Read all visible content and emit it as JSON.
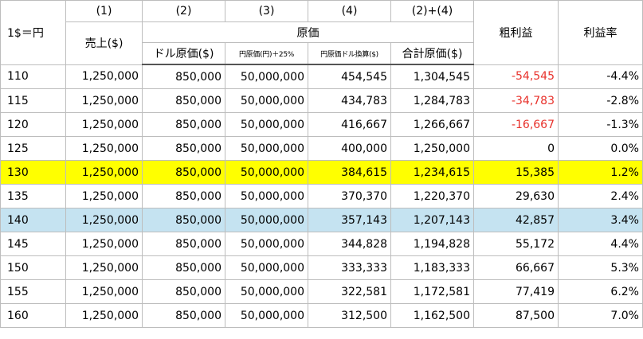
{
  "headers": {
    "rate": "1$＝円",
    "sales_num": "(1)",
    "sales": "売上($)",
    "cost_usd_num": "(2)",
    "cost_jpy_num": "(3)",
    "cost_jpy_usd_num": "(4)",
    "total_cost_num": "(2)+(4)",
    "cost_group": "原価",
    "cost_usd": "ドル原価($)",
    "cost_jpy": "円原価(円)＋25%",
    "cost_jpy_usd": "円原価ドル換算($)",
    "total_cost": "合計原価($)",
    "gross_profit": "粗利益",
    "margin": "利益率"
  },
  "rows": [
    {
      "rate": "110",
      "sales": "1,250,000",
      "cost_usd": "850,000",
      "cost_jpy": "50,000,000",
      "cost_jpy_usd": "454,545",
      "total_cost": "1,304,545",
      "gross_profit": "-54,545",
      "margin": "-4.4%"
    },
    {
      "rate": "115",
      "sales": "1,250,000",
      "cost_usd": "850,000",
      "cost_jpy": "50,000,000",
      "cost_jpy_usd": "434,783",
      "total_cost": "1,284,783",
      "gross_profit": "-34,783",
      "margin": "-2.8%"
    },
    {
      "rate": "120",
      "sales": "1,250,000",
      "cost_usd": "850,000",
      "cost_jpy": "50,000,000",
      "cost_jpy_usd": "416,667",
      "total_cost": "1,266,667",
      "gross_profit": "-16,667",
      "margin": "-1.3%"
    },
    {
      "rate": "125",
      "sales": "1,250,000",
      "cost_usd": "850,000",
      "cost_jpy": "50,000,000",
      "cost_jpy_usd": "400,000",
      "total_cost": "1,250,000",
      "gross_profit": "0",
      "margin": "0.0%"
    },
    {
      "rate": "130",
      "sales": "1,250,000",
      "cost_usd": "850,000",
      "cost_jpy": "50,000,000",
      "cost_jpy_usd": "384,615",
      "total_cost": "1,234,615",
      "gross_profit": "15,385",
      "margin": "1.2%"
    },
    {
      "rate": "135",
      "sales": "1,250,000",
      "cost_usd": "850,000",
      "cost_jpy": "50,000,000",
      "cost_jpy_usd": "370,370",
      "total_cost": "1,220,370",
      "gross_profit": "29,630",
      "margin": "2.4%"
    },
    {
      "rate": "140",
      "sales": "1,250,000",
      "cost_usd": "850,000",
      "cost_jpy": "50,000,000",
      "cost_jpy_usd": "357,143",
      "total_cost": "1,207,143",
      "gross_profit": "42,857",
      "margin": "3.4%"
    },
    {
      "rate": "145",
      "sales": "1,250,000",
      "cost_usd": "850,000",
      "cost_jpy": "50,000,000",
      "cost_jpy_usd": "344,828",
      "total_cost": "1,194,828",
      "gross_profit": "55,172",
      "margin": "4.4%"
    },
    {
      "rate": "150",
      "sales": "1,250,000",
      "cost_usd": "850,000",
      "cost_jpy": "50,000,000",
      "cost_jpy_usd": "333,333",
      "total_cost": "1,183,333",
      "gross_profit": "66,667",
      "margin": "5.3%"
    },
    {
      "rate": "155",
      "sales": "1,250,000",
      "cost_usd": "850,000",
      "cost_jpy": "50,000,000",
      "cost_jpy_usd": "322,581",
      "total_cost": "1,172,581",
      "gross_profit": "77,419",
      "margin": "6.2%"
    },
    {
      "rate": "160",
      "sales": "1,250,000",
      "cost_usd": "850,000",
      "cost_jpy": "50,000,000",
      "cost_jpy_usd": "312,500",
      "total_cost": "1,162,500",
      "gross_profit": "87,500",
      "margin": "7.0%"
    }
  ],
  "highlight": {
    "yellow_row_rate": "130",
    "blue_row_rate": "140",
    "yellow_color": "#ffff00",
    "blue_color": "#c5e3f1",
    "negative_color": "#e8312b"
  }
}
